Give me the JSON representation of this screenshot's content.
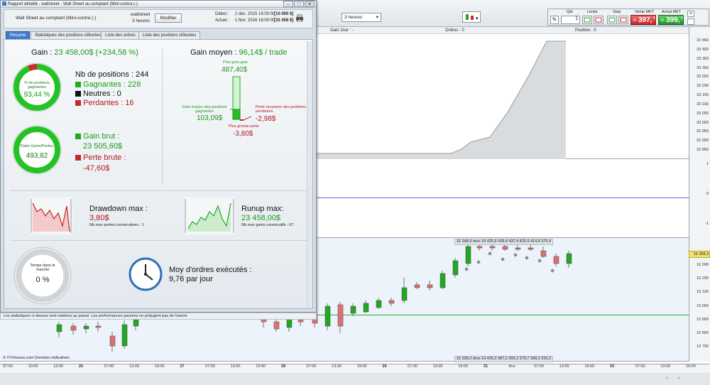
{
  "window": {
    "title": "Rapport détaillé - wallstreet - Wall Street au comptant (Mini-contra (-)"
  },
  "header": {
    "instrument": "Wall Street au comptant (Mini-contra (-)",
    "name": "wallstreet",
    "period": "3 heures",
    "modify_label": "Modifier",
    "start_label": "Début :",
    "start_value": "2 déc. 2015 16:00:00",
    "start_price": "[10 000 $]",
    "current_label": "Actuel :",
    "current_value": "1 févr. 2016 16:00:00",
    "current_price": "[33 458 $]"
  },
  "tabs": [
    "Résumé",
    "Statistiques des positions clôturées",
    "Liste des ordres",
    "Liste des positions clôturées"
  ],
  "summary": {
    "gain_label": "Gain : ",
    "gain_value": "23 458,00$ (+234,58 %)",
    "pct_winning_label": "% de positions gagnantes",
    "pct_winning_value": "93,44 %",
    "pct_winning_fraction": 0.9344,
    "nb_positions": "Nb de positions : 244",
    "winning": "Gagnantes : 228",
    "neutral": "Neutres : 0",
    "losing": "Perdantes : 16",
    "ratio_label": "Ratio Gains/Pertes",
    "ratio_value": "493,82",
    "gross_gain_label": "Gain brut :",
    "gross_gain_value": "23 505,60$",
    "gross_loss_label": "Perte brute :",
    "gross_loss_value": "-47,60$",
    "avg_gain_label": "Gain moyen : ",
    "avg_gain_value": "96,14$ / trade",
    "biggest_gain_label": "Plus gros gain",
    "biggest_gain_value": "487,40$",
    "avg_winning_label": "Gain moyen des positions gagnantes",
    "avg_winning_value": "103,09$",
    "avg_losing_label": "Perte moyenne des positions perdantes",
    "avg_losing_value": "-2,98$",
    "biggest_loss_label": "Plus grosse perte",
    "biggest_loss_value": "-3,80$",
    "drawdown_label": "Drawdown max :",
    "drawdown_value": "3,80$",
    "drawdown_sub": "Nb max pertes consécutives : 1",
    "runup_label": "Runup max:",
    "runup_value": "23 458,00$",
    "runup_sub": "Nb max gains consécutifs : 67",
    "time_in_market_label": "Temps dans le marché",
    "time_in_market_value": "0 %",
    "avg_orders_label": "Moy d'ordres exécutés :",
    "avg_orders_value": "9,76 par jour"
  },
  "disclaimer": "Les statistiques ci-dessus sont relatives au passé. Les performances passées ne préjugent pas de l'avenir.",
  "toolbar": {
    "period_select": "3 heures",
    "qty_label": "Qté",
    "qty_value": "1",
    "limit_label": "Limite",
    "stop_label": "Stop",
    "sell_label": "Vente MKT",
    "sell_prefix": "16",
    "sell_value": "397,",
    "sell_suffix": "4",
    "buy_label": "Achat MKT",
    "buy_prefix": "16",
    "buy_value": "399,",
    "buy_suffix": "4"
  },
  "chart_info": {
    "gain_jour": "Gain Jour : -",
    "orders": "Ordres : 0",
    "position": "Position : 0"
  },
  "equity_axis": [
    "33 450",
    "33 400",
    "33 350",
    "33 300",
    "33 250",
    "33 200",
    "33 150",
    "33 100",
    "33 050",
    "33 000",
    "32 950",
    "32 900",
    "32 850"
  ],
  "middle_axis": [
    "1",
    "0",
    "-1"
  ],
  "price_axis": [
    "16 398,3",
    "16 300",
    "16 200",
    "16 100",
    "16 000",
    "15 900",
    "15 800",
    "15 700"
  ],
  "price_marker": "16 398,3",
  "order_labels_top": "16 348,9  dres 16 425,9  428,4  437,4  425,9  414,9  375,4",
  "order_labels_bottom": "16 339,2  dres 16 425,2  387,2  393,2  379,7  349,2  315,2",
  "x_axis": [
    "07:00",
    "10:00",
    "13:00",
    "26",
    "07:00",
    "13:00",
    "19:00",
    "27",
    "07:00",
    "13:00",
    "19:00",
    "28",
    "07:00",
    "13:00",
    "19:00",
    "29",
    "07:00",
    "13:00",
    "19:00",
    "31",
    "févr.",
    "07:00",
    "13:00",
    "19:00",
    "02",
    "07:00",
    "13:00",
    "19:00"
  ],
  "source": "© IT-Finance.com  Données indicatives",
  "colors": {
    "green": "#22a822",
    "red": "#c22a2a",
    "accent": "#3f7ccc"
  }
}
